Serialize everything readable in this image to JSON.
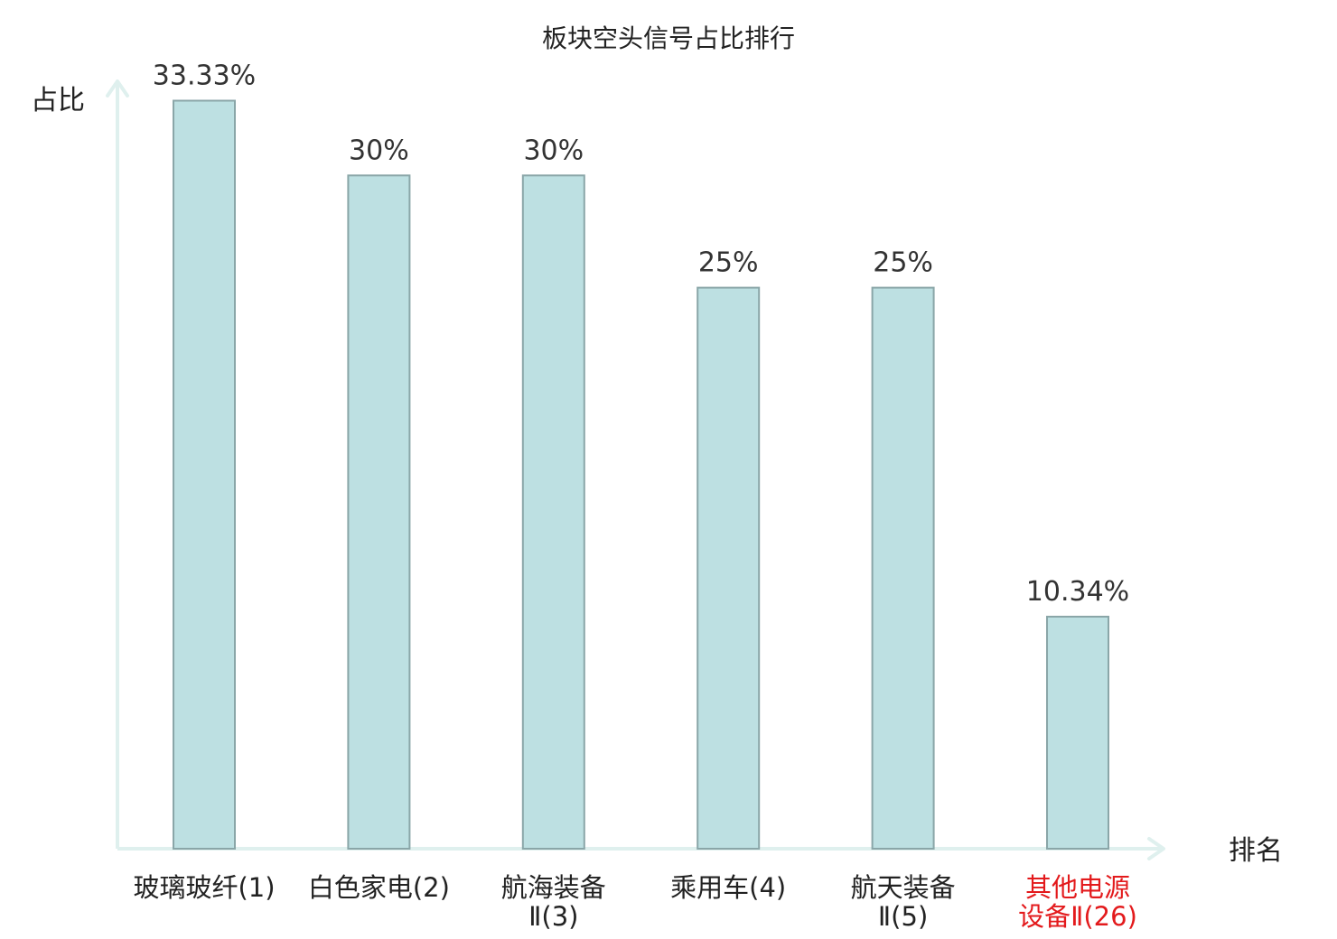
{
  "chart_data": {
    "type": "bar",
    "title": "板块空头信号占比排行",
    "ylabel": "占比",
    "xlabel": "排名",
    "ylim": [
      0,
      35
    ],
    "grid": false,
    "categories": [
      [
        "玻璃玻纤(1)"
      ],
      [
        "白色家电(2)"
      ],
      [
        "航海装备",
        "Ⅱ(3)"
      ],
      [
        "乘用车(4)"
      ],
      [
        "航天装备",
        "Ⅱ(5)"
      ],
      [
        "其他电源",
        "设备Ⅱ(26)"
      ]
    ],
    "values": [
      33.33,
      30,
      30,
      25,
      25,
      10.34
    ],
    "value_labels": [
      "33.33%",
      "30%",
      "30%",
      "25%",
      "25%",
      "10.34%"
    ],
    "highlight_index": 5,
    "colors": {
      "bar_fill": "#bde0e2",
      "bar_stroke": "#8aa6a8",
      "axis": "#dff0ee",
      "highlight_label": "#e31a1c",
      "label": "#222222"
    }
  }
}
